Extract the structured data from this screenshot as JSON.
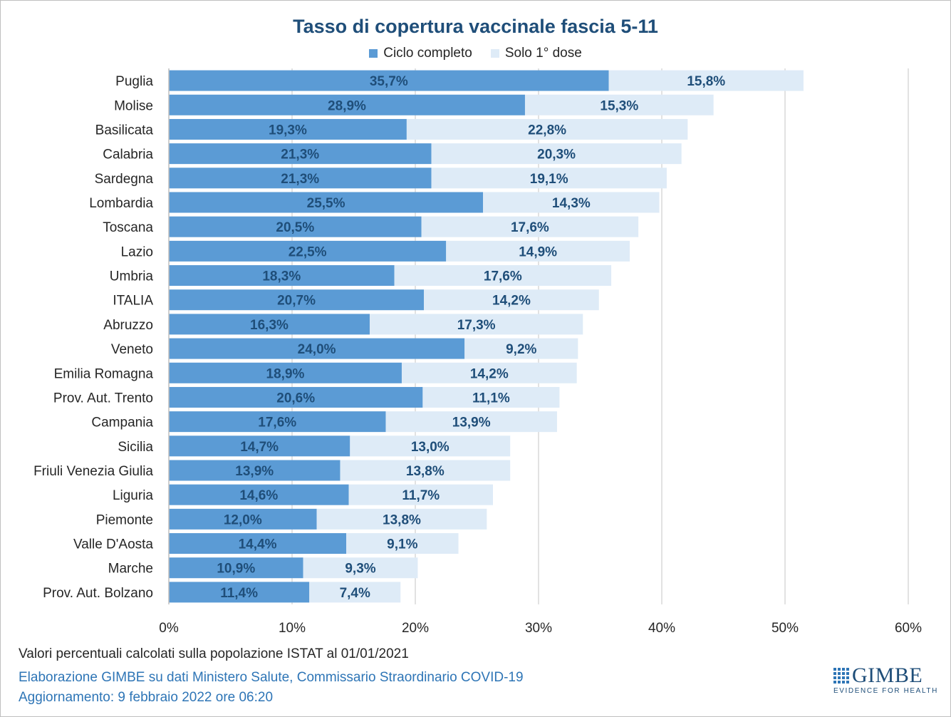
{
  "chart_data": {
    "type": "bar",
    "orientation": "horizontal",
    "stacked": true,
    "title": "Tasso di copertura vaccinale fascia 5-11",
    "categories": [
      "Puglia",
      "Molise",
      "Basilicata",
      "Calabria",
      "Sardegna",
      "Lombardia",
      "Toscana",
      "Lazio",
      "Umbria",
      "ITALIA",
      "Abruzzo",
      "Veneto",
      "Emilia Romagna",
      "Prov. Aut. Trento",
      "Campania",
      "Sicilia",
      "Friuli Venezia Giulia",
      "Liguria",
      "Piemonte",
      "Valle D'Aosta",
      "Marche",
      "Prov. Aut. Bolzano"
    ],
    "series": [
      {
        "name": "Ciclo completo",
        "color": "#5b9bd5",
        "values": [
          35.7,
          28.9,
          19.3,
          21.3,
          21.3,
          25.5,
          20.5,
          22.5,
          18.3,
          20.7,
          16.3,
          24.0,
          18.9,
          20.6,
          17.6,
          14.7,
          13.9,
          14.6,
          12.0,
          14.4,
          10.9,
          11.4
        ]
      },
      {
        "name": "Solo 1° dose",
        "color": "#deebf7",
        "values": [
          15.8,
          15.3,
          22.8,
          20.3,
          19.1,
          14.3,
          17.6,
          14.9,
          17.6,
          14.2,
          17.3,
          9.2,
          14.2,
          11.1,
          13.9,
          13.0,
          13.8,
          11.7,
          13.8,
          9.1,
          9.3,
          7.4
        ]
      }
    ],
    "xlim": [
      0,
      60
    ],
    "xticks": [
      0,
      10,
      20,
      30,
      40,
      50,
      60
    ],
    "tick_suffix": "%",
    "grid": true,
    "legend_position": "top"
  },
  "footer": {
    "note": "Valori percentuali calcolati sulla popolazione ISTAT al 01/01/2021",
    "source": "Elaborazione GIMBE su dati Ministero Salute, Commissario Straordinario COVID-19",
    "update": "Aggiornamento: 9 febbraio 2022 ore 06:20"
  },
  "logo": {
    "name": "GIMBE",
    "tagline": "EVIDENCE FOR HEALTH"
  }
}
